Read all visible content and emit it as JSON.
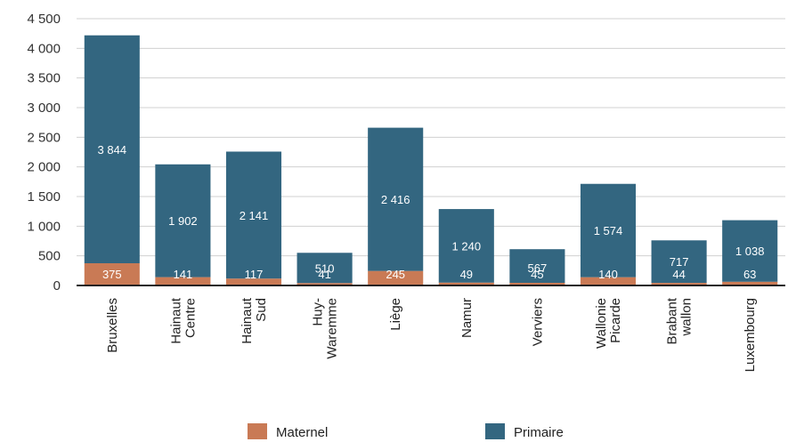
{
  "chart_data": {
    "type": "bar",
    "stacked": true,
    "categories": [
      [
        "Bruxelles"
      ],
      [
        "Hainaut",
        "Centre"
      ],
      [
        "Hainaut",
        "Sud"
      ],
      [
        "Huy-",
        "Waremme"
      ],
      [
        "Liège"
      ],
      [
        "Namur"
      ],
      [
        "Verviers"
      ],
      [
        "Wallonie",
        "Picarde"
      ],
      [
        "Brabant",
        "wallon"
      ],
      [
        "Luxembourg"
      ]
    ],
    "series": [
      {
        "name": "Maternel",
        "color": "#c97a55",
        "values": [
          375,
          141,
          117,
          41,
          245,
          49,
          45,
          140,
          44,
          63
        ],
        "labels": [
          "375",
          "141",
          "117",
          "41",
          "245",
          "49",
          "45",
          "140",
          "44",
          "63"
        ]
      },
      {
        "name": "Primaire",
        "color": "#336680",
        "values": [
          3844,
          1902,
          2141,
          510,
          2416,
          1240,
          567,
          1574,
          717,
          1038
        ],
        "labels": [
          "3 844",
          "1 902",
          "2 141",
          "510",
          "2 416",
          "1 240",
          "567",
          "1 574",
          "717",
          "1 038"
        ]
      }
    ],
    "ylim": [
      0,
      4500
    ],
    "yticks": [
      0,
      500,
      1000,
      1500,
      2000,
      2500,
      3000,
      3500,
      4000,
      4500
    ],
    "ytick_labels": [
      "0",
      "500",
      "1 000",
      "1 500",
      "2 000",
      "2 500",
      "3 000",
      "3 500",
      "4 000",
      "4 500"
    ],
    "grid": true,
    "legend_position": "bottom",
    "title": "",
    "xlabel": "",
    "ylabel": ""
  }
}
